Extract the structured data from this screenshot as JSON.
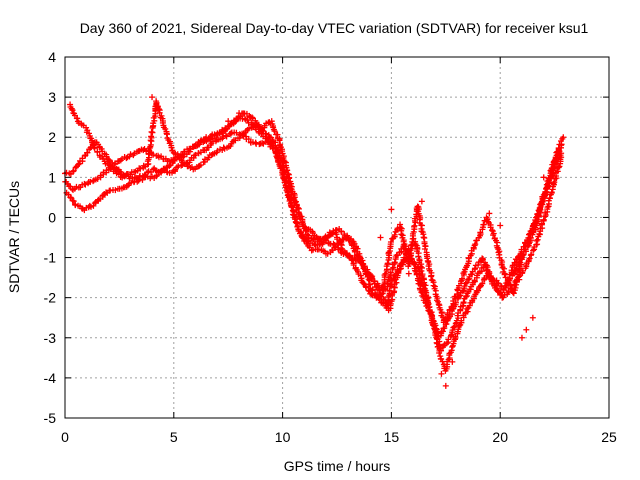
{
  "chart_data": {
    "type": "scatter",
    "title": "Day 360 of 2021, Sidereal Day-to-day VTEC variation (SDTVAR) for receiver ksu1",
    "xlabel": "GPS time / hours",
    "ylabel": "SDTVAR / TECUs",
    "xlim": [
      0,
      25
    ],
    "ylim": [
      -5,
      4
    ],
    "x_ticks": [
      "0",
      "5",
      "10",
      "15",
      "20",
      "25"
    ],
    "y_ticks": [
      "4",
      "3",
      "2",
      "1",
      "0",
      "-1",
      "-2",
      "-3",
      "-4",
      "-5"
    ],
    "grid": true,
    "legend": "none",
    "marker": "plus",
    "color": "#ff0000",
    "series": [
      {
        "x": [
          0.0,
          0.3,
          0.6,
          1.0,
          1.4,
          1.8,
          2.2,
          2.6,
          3.0,
          3.4,
          3.8,
          4.1,
          4.4,
          4.8,
          5.2,
          5.6,
          6.0,
          6.4,
          6.8,
          7.2,
          7.6,
          8.0,
          8.4,
          8.8,
          9.2,
          9.6,
          10.0,
          10.4,
          10.8,
          11.2,
          11.6,
          12.0,
          12.4,
          12.8,
          13.2,
          13.6,
          14.0,
          14.4,
          14.8,
          15.0,
          15.4,
          15.8,
          16.2,
          16.6,
          17.0,
          17.2,
          17.5,
          17.8,
          18.2,
          18.6,
          19.0,
          19.4,
          19.8,
          20.2,
          20.6,
          21.0,
          21.4,
          21.8,
          22.2,
          22.5,
          22.8
        ],
        "y": [
          1.1,
          1.1,
          1.3,
          1.6,
          1.9,
          1.6,
          1.3,
          1.1,
          1.0,
          1.0,
          1.1,
          1.2,
          1.1,
          1.3,
          1.5,
          1.7,
          1.8,
          1.9,
          2.0,
          2.1,
          2.3,
          2.5,
          2.4,
          2.2,
          2.0,
          1.8,
          1.1,
          0.3,
          -0.4,
          -0.6,
          -0.7,
          -0.6,
          -0.7,
          -0.9,
          -1.0,
          -1.1,
          -1.4,
          -1.8,
          -2.2,
          -1.6,
          -1.2,
          -1.0,
          -1.2,
          -2.0,
          -2.8,
          -3.4,
          -3.8,
          -3.2,
          -2.6,
          -2.2,
          -1.8,
          -1.4,
          -1.6,
          -1.8,
          -1.2,
          -0.8,
          -0.4,
          0.2,
          0.8,
          1.4,
          1.8
        ]
      },
      {
        "x": [
          0.1,
          0.5,
          0.9,
          1.3,
          1.7,
          2.1,
          2.5,
          2.9,
          3.3,
          3.7,
          4.1,
          4.5,
          4.9,
          5.3,
          5.7,
          6.1,
          6.5,
          6.9,
          7.3,
          7.7,
          8.1,
          8.5,
          8.9,
          9.3,
          9.7,
          10.1,
          10.5,
          10.9,
          11.3,
          11.7,
          12.1,
          12.5,
          12.9,
          13.3,
          13.7,
          14.1,
          14.5,
          14.9,
          15.3,
          15.7,
          16.1,
          16.5,
          16.9,
          17.3,
          17.7,
          18.1,
          18.5,
          18.9,
          19.3,
          19.7,
          20.1,
          20.5,
          20.9,
          21.3,
          21.7,
          22.1,
          22.5,
          22.8
        ],
        "y": [
          0.6,
          0.3,
          0.2,
          0.3,
          0.5,
          0.7,
          0.7,
          0.8,
          0.9,
          1.0,
          1.0,
          1.2,
          1.1,
          1.3,
          1.4,
          1.6,
          1.7,
          1.9,
          2.0,
          2.1,
          2.1,
          1.9,
          1.8,
          1.9,
          1.6,
          0.9,
          0.1,
          -0.5,
          -0.8,
          -0.8,
          -0.9,
          -0.7,
          -0.5,
          -0.6,
          -1.2,
          -1.8,
          -2.1,
          -2.3,
          -1.4,
          -0.9,
          -0.6,
          -1.6,
          -2.6,
          -3.3,
          -3.0,
          -2.4,
          -1.9,
          -1.5,
          -1.2,
          -1.7,
          -2.0,
          -1.8,
          -1.5,
          -1.1,
          -0.6,
          0.1,
          0.9,
          1.5
        ]
      },
      {
        "x": [
          0.2,
          0.6,
          1.0,
          1.4,
          1.8,
          2.2,
          2.6,
          3.0,
          3.4,
          3.8,
          4.2,
          4.6,
          5.0,
          5.4,
          5.8,
          6.2,
          6.6,
          7.0,
          7.4,
          7.8,
          8.2,
          8.6,
          9.0,
          9.4,
          9.8,
          10.2,
          10.6,
          11.0,
          11.4,
          11.8,
          12.2,
          12.6,
          13.0,
          13.4,
          13.8,
          14.2,
          14.6,
          15.0,
          15.4,
          15.8,
          16.2,
          16.6,
          17.0,
          17.4,
          17.8,
          18.2,
          18.6,
          19.0,
          19.4,
          19.8,
          20.2,
          20.6,
          21.0,
          21.4,
          21.8,
          22.2,
          22.6,
          22.9
        ],
        "y": [
          2.8,
          2.4,
          2.2,
          1.7,
          1.4,
          1.2,
          1.0,
          1.1,
          1.2,
          1.3,
          2.9,
          2.2,
          1.6,
          1.5,
          1.7,
          1.9,
          2.0,
          2.1,
          2.2,
          2.4,
          2.6,
          2.5,
          2.2,
          2.4,
          2.0,
          1.2,
          0.4,
          -0.2,
          -0.4,
          -0.6,
          -0.4,
          -0.3,
          -0.5,
          -0.9,
          -1.3,
          -1.6,
          -1.8,
          -0.6,
          -0.2,
          -1.2,
          0.3,
          -0.9,
          -1.8,
          -2.6,
          -2.2,
          -1.6,
          -1.0,
          -0.5,
          0.0,
          -0.6,
          -1.4,
          -1.9,
          -1.0,
          -0.4,
          0.2,
          0.9,
          1.6,
          2.0
        ]
      },
      {
        "x": [
          0.0,
          0.4,
          0.8,
          1.2,
          1.6,
          2.0,
          2.4,
          2.8,
          3.2,
          3.6,
          4.0,
          4.4,
          4.8,
          5.2,
          5.6,
          6.0,
          6.4,
          6.8,
          7.2,
          7.6,
          8.0,
          8.4,
          8.8,
          9.2,
          9.6,
          10.0,
          10.4,
          10.8,
          11.2,
          11.6,
          12.0,
          12.4,
          12.8,
          13.2,
          13.6,
          14.0,
          14.4,
          14.8,
          15.2,
          15.6,
          16.0,
          16.4,
          16.8,
          17.2,
          17.6,
          18.0,
          18.4,
          18.8,
          19.2,
          19.6,
          20.0,
          20.4,
          20.8,
          21.2,
          21.6,
          22.0,
          22.4,
          22.8
        ],
        "y": [
          0.9,
          0.7,
          0.8,
          0.9,
          1.0,
          1.2,
          1.4,
          1.5,
          1.6,
          1.7,
          1.6,
          1.5,
          1.4,
          1.5,
          1.3,
          1.2,
          1.4,
          1.6,
          1.7,
          1.8,
          2.0,
          2.2,
          2.3,
          2.1,
          1.9,
          1.4,
          0.6,
          0.0,
          -0.5,
          -0.6,
          -0.5,
          -0.4,
          -0.8,
          -1.1,
          -1.5,
          -1.9,
          -2.0,
          -1.7,
          -1.0,
          -0.7,
          -1.1,
          -1.9,
          -2.4,
          -3.0,
          -2.6,
          -2.1,
          -1.7,
          -1.3,
          -1.0,
          -1.5,
          -1.9,
          -1.6,
          -1.2,
          -0.8,
          -0.3,
          0.5,
          1.1,
          1.6
        ]
      },
      {
        "x": [
          4.0,
          4.2,
          7.5,
          8.0,
          8.5,
          9.0,
          9.5,
          14.5,
          15.0,
          15.8,
          16.4,
          17.3,
          17.5,
          17.8,
          18.3,
          19.5,
          20.0,
          21.0,
          21.2,
          21.5,
          22.0
        ],
        "y": [
          3.0,
          2.8,
          2.4,
          2.6,
          2.5,
          2.2,
          2.4,
          -0.5,
          0.2,
          -1.4,
          0.4,
          -3.9,
          -4.2,
          -3.6,
          -2.2,
          0.1,
          -0.2,
          -3.0,
          -2.8,
          -2.5,
          1.0
        ]
      }
    ]
  }
}
